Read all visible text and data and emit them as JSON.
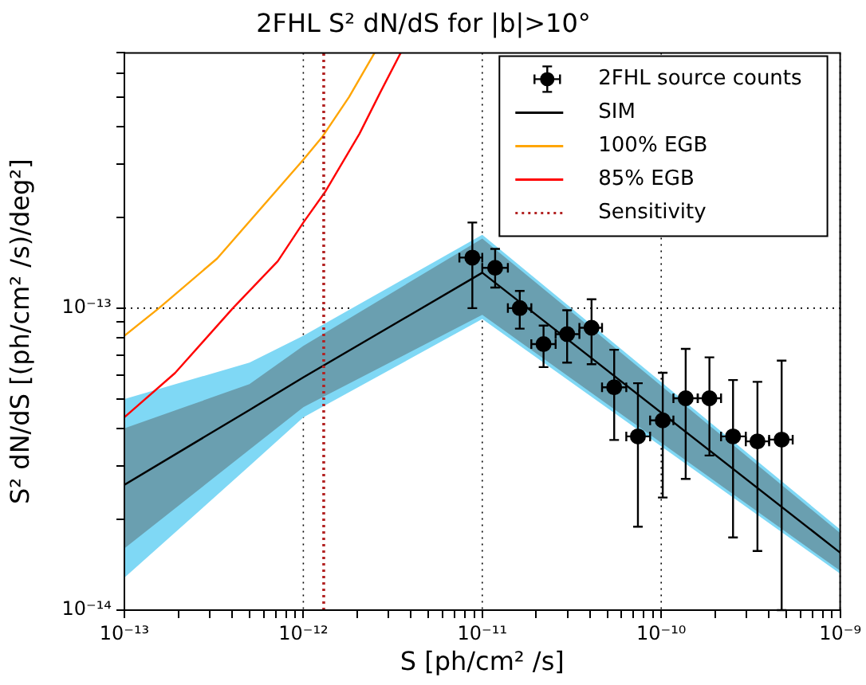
{
  "chart_data": {
    "type": "scatter",
    "title": "2FHL S² dN/dS for |b|>10°",
    "xlabel": "S [ph/cm² /s]",
    "ylabel": "S² dN/dS [(ph/cm² /s)/deg²]",
    "log": "xy",
    "xlim": [
      1e-13,
      1e-09
    ],
    "ylim": [
      1e-14,
      7e-13
    ],
    "xticks": [
      {
        "value": 1e-13,
        "label": "10⁻¹³"
      },
      {
        "value": 2e-13,
        "label": null
      },
      {
        "value": 3e-13,
        "label": null
      },
      {
        "value": 4e-13,
        "label": null
      },
      {
        "value": 5e-13,
        "label": null
      },
      {
        "value": 6e-13,
        "label": null
      },
      {
        "value": 7e-13,
        "label": null
      },
      {
        "value": 8e-13,
        "label": null
      },
      {
        "value": 9e-13,
        "label": null
      },
      {
        "value": 1e-12,
        "label": "10⁻¹²"
      },
      {
        "value": 2e-12,
        "label": null
      },
      {
        "value": 3e-12,
        "label": null
      },
      {
        "value": 4e-12,
        "label": null
      },
      {
        "value": 5e-12,
        "label": null
      },
      {
        "value": 6e-12,
        "label": null
      },
      {
        "value": 7e-12,
        "label": null
      },
      {
        "value": 8e-12,
        "label": null
      },
      {
        "value": 9e-12,
        "label": null
      },
      {
        "value": 1e-11,
        "label": "10⁻¹¹"
      },
      {
        "value": 2e-11,
        "label": null
      },
      {
        "value": 3e-11,
        "label": null
      },
      {
        "value": 4e-11,
        "label": null
      },
      {
        "value": 5e-11,
        "label": null
      },
      {
        "value": 6e-11,
        "label": null
      },
      {
        "value": 7e-11,
        "label": null
      },
      {
        "value": 8e-11,
        "label": null
      },
      {
        "value": 9e-11,
        "label": null
      },
      {
        "value": 1e-10,
        "label": "10⁻¹⁰"
      },
      {
        "value": 2e-10,
        "label": null
      },
      {
        "value": 3e-10,
        "label": null
      },
      {
        "value": 4e-10,
        "label": null
      },
      {
        "value": 5e-10,
        "label": null
      },
      {
        "value": 6e-10,
        "label": null
      },
      {
        "value": 7e-10,
        "label": null
      },
      {
        "value": 8e-10,
        "label": null
      },
      {
        "value": 9e-10,
        "label": null
      },
      {
        "value": 1e-09,
        "label": "10⁻⁹"
      }
    ],
    "yticks": [
      {
        "value": 1e-14,
        "label": "10⁻¹⁴"
      },
      {
        "value": 2e-14,
        "label": null
      },
      {
        "value": 3e-14,
        "label": null
      },
      {
        "value": 4e-14,
        "label": null
      },
      {
        "value": 5e-14,
        "label": null
      },
      {
        "value": 6e-14,
        "label": null
      },
      {
        "value": 7e-14,
        "label": null
      },
      {
        "value": 8e-14,
        "label": null
      },
      {
        "value": 9e-14,
        "label": null
      },
      {
        "value": 1e-13,
        "label": "10⁻¹³"
      },
      {
        "value": 2e-13,
        "label": null
      },
      {
        "value": 3e-13,
        "label": null
      },
      {
        "value": 4e-13,
        "label": null
      },
      {
        "value": 5e-13,
        "label": null
      },
      {
        "value": 6e-13,
        "label": null
      },
      {
        "value": 7e-13,
        "label": null
      }
    ],
    "grid": true,
    "legend": "top right",
    "series": [
      {
        "name": "2FHL source counts",
        "type": "scatter",
        "color": "#000000",
        "marker": "circle",
        "x": [
          8.8e-12,
          1.18e-11,
          1.62e-11,
          2.2e-11,
          2.98e-11,
          4.08e-11,
          5.46e-11,
          7.41e-11,
          1.02e-10,
          1.37e-10,
          1.86e-10,
          2.52e-10,
          3.45e-10,
          4.71e-10
        ],
        "values": [
          1.47e-13,
          1.36e-13,
          1e-13,
          7.6e-14,
          8.2e-14,
          8.61e-14,
          5.47e-14,
          3.76e-14,
          4.25e-14,
          5.03e-14,
          5.03e-14,
          3.76e-14,
          3.62e-14,
          3.67e-14
        ],
        "errors": [
          [
            1e-13,
            1.92e-13
          ],
          [
            1.17e-13,
            1.57e-13
          ],
          [
            8.55e-14,
            1.14e-13
          ],
          [
            6.38e-14,
            8.75e-14
          ],
          [
            6.6e-14,
            9.84e-14
          ],
          [
            6.52e-14,
            1.07e-13
          ],
          [
            3.66e-14,
            7.28e-14
          ],
          [
            1.89e-14,
            5.64e-14
          ],
          [
            2.36e-14,
            6.11e-14
          ],
          [
            2.72e-14,
            7.33e-14
          ],
          [
            3.25e-14,
            6.87e-14
          ],
          [
            1.74e-14,
            5.78e-14
          ],
          [
            1.57e-14,
            5.7e-14
          ],
          [
            1e-14,
            6.7e-14
          ]
        ],
        "xerrors": [
          [
            7.45e-12,
            1e-11
          ],
          [
            1e-11,
            1.39e-11
          ],
          [
            1.39e-11,
            1.88e-11
          ],
          [
            1.88e-11,
            2.57e-11
          ],
          [
            2.57e-11,
            3.49e-11
          ],
          [
            3.49e-11,
            4.67e-11
          ],
          [
            4.67e-11,
            6.38e-11
          ],
          [
            6.38e-11,
            8.67e-11
          ],
          [
            8.67e-11,
            1.17e-10
          ],
          [
            1.17e-10,
            1.6e-10
          ],
          [
            1.6e-10,
            2.16e-10
          ],
          [
            2.16e-10,
            2.97e-10
          ],
          [
            2.97e-10,
            4.01e-10
          ],
          [
            4.01e-10,
            5.43e-10
          ]
        ]
      },
      {
        "type": "line",
        "color": "#7fd8f5",
        "x": [
          1e-13,
          5e-13,
          1e-12,
          1e-11,
          1e-09
        ],
        "values": [
          null,
          null,
          null,
          null,
          null
        ],
        "lower": [
          1.28e-14,
          3e-14,
          4.35e-14,
          9.2e-14,
          1.32e-14
        ],
        "upper": [
          5e-14,
          6.6e-14,
          8.1e-14,
          1.75e-13,
          1.85e-14
        ]
      },
      {
        "name": "SIM",
        "type": "line",
        "color": "#000000",
        "marker": "none",
        "x": [
          1e-13,
          5e-13,
          1e-12,
          1e-11,
          1e-09
        ],
        "values": [
          2.6e-14,
          4.6e-14,
          5.9e-14,
          1.31e-13,
          1.55e-14
        ],
        "lower": [
          1.6e-14,
          3.4e-14,
          4.7e-14,
          9.5e-14,
          1.35e-14
        ],
        "upper": [
          4e-14,
          5.6e-14,
          7.5e-14,
          1.7e-13,
          1.8e-14
        ]
      },
      {
        "name": "100% EGB",
        "type": "line",
        "color": "#ffa500",
        "marker": "none",
        "x": [
          1e-13,
          1.56e-13,
          3.3e-13,
          1e-12,
          1.28e-12,
          1.8e-12,
          2.5e-12
        ],
        "values": [
          8.1e-14,
          1e-13,
          1.46e-13,
          3.1e-13,
          3.7e-13,
          5e-13,
          7e-13
        ]
      },
      {
        "name": "85% EGB",
        "type": "line",
        "color": "#ff0000",
        "marker": "none",
        "x": [
          1e-13,
          1.92e-13,
          4.04e-13,
          7.2e-13,
          1e-12,
          1.32e-12,
          2.06e-12,
          2.7e-12,
          3.5e-12
        ],
        "values": [
          4.35e-14,
          6.1e-14,
          1e-13,
          1.43e-13,
          1.92e-13,
          2.42e-13,
          3.78e-13,
          5.2e-13,
          7e-13
        ]
      },
      {
        "name": "Sensitivity",
        "type": "line",
        "color": "#b22222",
        "marker": "none",
        "line_style": "dotted",
        "x": [
          1.3e-12,
          1.3e-12
        ],
        "values": [
          1e-14,
          7e-13
        ]
      }
    ]
  }
}
